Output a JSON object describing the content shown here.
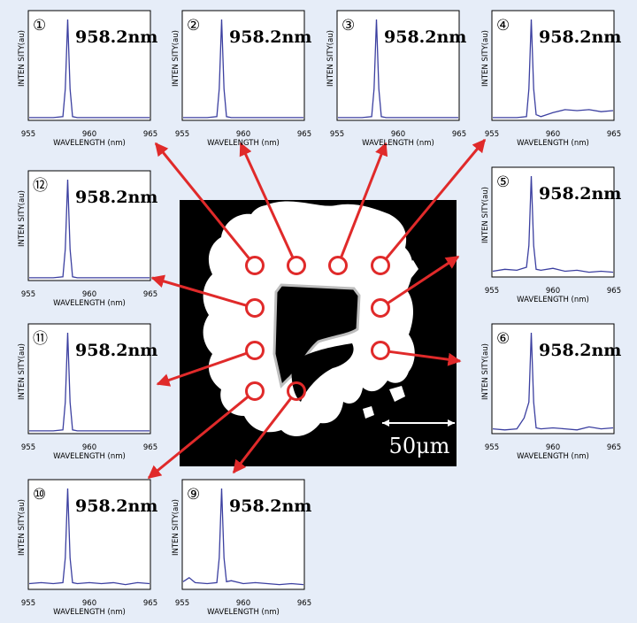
{
  "panel_number_glyphs": [
    "①",
    "②",
    "③",
    "④",
    "⑤",
    "⑥",
    "⑨",
    "⑩",
    "⑪",
    "⑫"
  ],
  "scale_bar_label": "50μm",
  "colors": {
    "background": "#e6edf8",
    "spectrum_line": "#3b3fa0",
    "arrow": "#e02a2a",
    "image_bg": "#000000"
  },
  "chart_data": [
    {
      "type": "line",
      "panel": "1",
      "peak_label": "958.2nm",
      "peak_wavelength": 958.2,
      "xlabel": "WAVELENGTH (nm)",
      "ylabel": "INTEN SITY(au)",
      "xlim": [
        955,
        965
      ],
      "x_ticks": [
        "955",
        "960",
        "965"
      ],
      "x": [
        955,
        956,
        957,
        957.8,
        958.0,
        958.2,
        958.4,
        958.6,
        959,
        960,
        961,
        962,
        963,
        964,
        965
      ],
      "y": [
        0.01,
        0.01,
        0.01,
        0.02,
        0.3,
        1.0,
        0.3,
        0.02,
        0.01,
        0.01,
        0.01,
        0.01,
        0.01,
        0.01,
        0.01
      ]
    },
    {
      "type": "line",
      "panel": "2",
      "peak_label": "958.2nm",
      "peak_wavelength": 958.2,
      "xlabel": "WAVELENGTH (nm)",
      "ylabel": "INTEN SITY(au)",
      "xlim": [
        955,
        965
      ],
      "x_ticks": [
        "955",
        "960",
        "965"
      ],
      "x": [
        955,
        956,
        957,
        957.8,
        958.0,
        958.2,
        958.4,
        958.6,
        959,
        960,
        961,
        962,
        963,
        964,
        965
      ],
      "y": [
        0.01,
        0.01,
        0.01,
        0.02,
        0.3,
        1.0,
        0.3,
        0.02,
        0.01,
        0.01,
        0.01,
        0.01,
        0.01,
        0.01,
        0.01
      ]
    },
    {
      "type": "line",
      "panel": "3",
      "peak_label": "958.2nm",
      "peak_wavelength": 958.2,
      "xlabel": "WAVELENGTH (nm)",
      "ylabel": "INTEN SITY(au)",
      "xlim": [
        955,
        965
      ],
      "x_ticks": [
        "955",
        "960",
        "965"
      ],
      "x": [
        955,
        956,
        957,
        957.8,
        958.0,
        958.2,
        958.4,
        958.6,
        959,
        960,
        961,
        962,
        963,
        964,
        965
      ],
      "y": [
        0.01,
        0.01,
        0.01,
        0.02,
        0.3,
        1.0,
        0.3,
        0.02,
        0.01,
        0.01,
        0.01,
        0.01,
        0.01,
        0.01,
        0.01
      ]
    },
    {
      "type": "line",
      "panel": "4",
      "peak_label": "958.2nm",
      "peak_wavelength": 958.2,
      "xlabel": "WAVELENGTH (nm)",
      "ylabel": "INTEN SITY(au)",
      "xlim": [
        955,
        965
      ],
      "x_ticks": [
        "955",
        "960",
        "965"
      ],
      "x": [
        955,
        956,
        957,
        957.8,
        958.0,
        958.2,
        958.4,
        958.6,
        959,
        960,
        961,
        962,
        963,
        964,
        965
      ],
      "y": [
        0.01,
        0.01,
        0.01,
        0.02,
        0.3,
        1.0,
        0.3,
        0.04,
        0.02,
        0.06,
        0.09,
        0.08,
        0.09,
        0.07,
        0.08
      ]
    },
    {
      "type": "line",
      "panel": "5",
      "peak_label": "958.2nm",
      "peak_wavelength": 958.2,
      "xlabel": "WAVELENGTH (nm)",
      "ylabel": "INTEN SITY(au)",
      "xlim": [
        955,
        965
      ],
      "x_ticks": [
        "955",
        "960",
        "965"
      ],
      "x": [
        955,
        956,
        957,
        957.8,
        958.0,
        958.2,
        958.4,
        958.6,
        959,
        960,
        961,
        962,
        963,
        964,
        965
      ],
      "y": [
        0.04,
        0.06,
        0.05,
        0.08,
        0.3,
        1.0,
        0.3,
        0.06,
        0.05,
        0.07,
        0.04,
        0.05,
        0.03,
        0.04,
        0.03
      ]
    },
    {
      "type": "line",
      "panel": "6",
      "peak_label": "958.2nm",
      "peak_wavelength": 958.2,
      "xlabel": "WAVELENGTH (nm)",
      "ylabel": "INTEN SITY(au)",
      "xlim": [
        955,
        965
      ],
      "x_ticks": [
        "955",
        "960",
        "965"
      ],
      "x": [
        955,
        956,
        957,
        957.6,
        958.0,
        958.2,
        958.4,
        958.6,
        959,
        960,
        961,
        962,
        963,
        964,
        965
      ],
      "y": [
        0.03,
        0.02,
        0.03,
        0.14,
        0.3,
        1.0,
        0.3,
        0.04,
        0.03,
        0.04,
        0.03,
        0.02,
        0.05,
        0.03,
        0.04
      ]
    },
    {
      "type": "line",
      "panel": "9",
      "peak_label": "958.2nm",
      "peak_wavelength": 958.2,
      "xlabel": "WAVELENGTH (nm)",
      "ylabel": "INTEN SITY(au)",
      "xlim": [
        955,
        965
      ],
      "x_ticks": [
        "955",
        "960",
        "965"
      ],
      "x": [
        955,
        955.5,
        956,
        957,
        957.8,
        958.0,
        958.2,
        958.4,
        958.6,
        959,
        960,
        961,
        962,
        963,
        964,
        965
      ],
      "y": [
        0.06,
        0.1,
        0.05,
        0.04,
        0.05,
        0.3,
        1.0,
        0.3,
        0.06,
        0.07,
        0.04,
        0.05,
        0.04,
        0.03,
        0.04,
        0.03
      ]
    },
    {
      "type": "line",
      "panel": "10",
      "peak_label": "958.2nm",
      "peak_wavelength": 958.2,
      "xlabel": "WAVELENGTH (nm)",
      "ylabel": "INTEN SITY(au)",
      "xlim": [
        955,
        965
      ],
      "x_ticks": [
        "955",
        "960",
        "965"
      ],
      "x": [
        955,
        956,
        957,
        957.8,
        958.0,
        958.2,
        958.4,
        958.6,
        959,
        960,
        961,
        962,
        963,
        964,
        965
      ],
      "y": [
        0.04,
        0.05,
        0.04,
        0.05,
        0.3,
        1.0,
        0.3,
        0.05,
        0.04,
        0.05,
        0.04,
        0.05,
        0.03,
        0.05,
        0.04
      ]
    },
    {
      "type": "line",
      "panel": "11",
      "peak_label": "958.2nm",
      "peak_wavelength": 958.2,
      "xlabel": "WAVELENGTH (nm)",
      "ylabel": "INTEN SITY(au)",
      "xlim": [
        955,
        965
      ],
      "x_ticks": [
        "955",
        "960",
        "965"
      ],
      "x": [
        955,
        956,
        957,
        957.8,
        958.0,
        958.2,
        958.4,
        958.6,
        959,
        960,
        961,
        962,
        963,
        964,
        965
      ],
      "y": [
        0.01,
        0.01,
        0.01,
        0.02,
        0.3,
        1.0,
        0.3,
        0.02,
        0.01,
        0.01,
        0.01,
        0.01,
        0.01,
        0.01,
        0.01
      ]
    },
    {
      "type": "line",
      "panel": "12",
      "peak_label": "958.2nm",
      "peak_wavelength": 958.2,
      "xlabel": "WAVELENGTH (nm)",
      "ylabel": "INTEN SITY(au)",
      "xlim": [
        955,
        965
      ],
      "x_ticks": [
        "955",
        "960",
        "965"
      ],
      "x": [
        955,
        956,
        957,
        957.8,
        958.0,
        958.2,
        958.4,
        958.6,
        959,
        960,
        961,
        962,
        963,
        964,
        965
      ],
      "y": [
        0.01,
        0.01,
        0.01,
        0.02,
        0.3,
        1.0,
        0.3,
        0.02,
        0.01,
        0.01,
        0.01,
        0.01,
        0.01,
        0.01,
        0.01
      ]
    }
  ]
}
